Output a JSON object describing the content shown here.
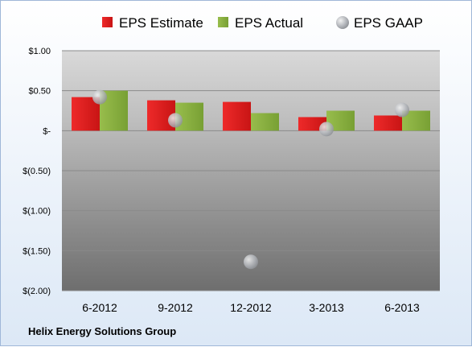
{
  "company_label": "Helix Energy Solutions Group",
  "chart_data": {
    "type": "bar",
    "title": "",
    "xlabel": "",
    "ylabel": "",
    "categories": [
      "6-2012",
      "9-2012",
      "12-2012",
      "3-2013",
      "6-2013"
    ],
    "series": [
      {
        "name": "EPS Estimate",
        "type": "bar",
        "color": "#dd1c1c",
        "values": [
          0.42,
          0.38,
          0.36,
          0.17,
          0.19
        ]
      },
      {
        "name": "EPS Actual",
        "type": "bar",
        "color": "#86ab3f",
        "values": [
          0.5,
          0.35,
          0.22,
          0.25,
          0.25
        ]
      },
      {
        "name": "EPS GAAP",
        "type": "scatter",
        "color": "#b8bcc2",
        "values": [
          0.42,
          0.13,
          -1.64,
          0.02,
          0.26
        ]
      }
    ],
    "ylim": [
      -2.0,
      1.0
    ],
    "yticks": [
      1.0,
      0.5,
      0.0,
      -0.5,
      -1.0,
      -1.5,
      -2.0
    ],
    "ytick_labels": [
      "$1.00",
      "$0.50",
      "$-",
      "$(0.50)",
      "$(1.00)",
      "$(1.50)",
      "$(2.00)"
    ],
    "grid": true,
    "legend_position": "top"
  }
}
